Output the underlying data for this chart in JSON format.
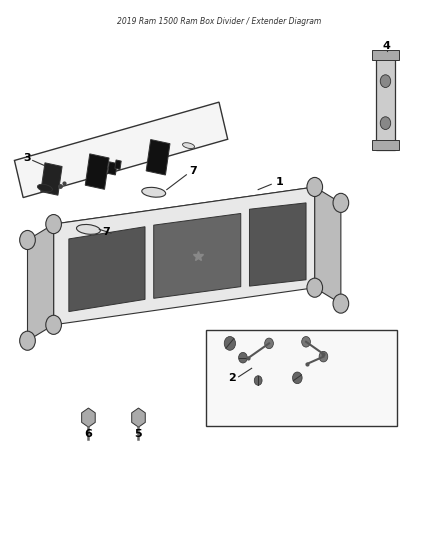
{
  "title": "2019 Ram 1500 Ram Box Divider / Extender Diagram",
  "background_color": "#ffffff",
  "figure_width": 4.38,
  "figure_height": 5.33,
  "dpi": 100,
  "line_color": "#333333"
}
